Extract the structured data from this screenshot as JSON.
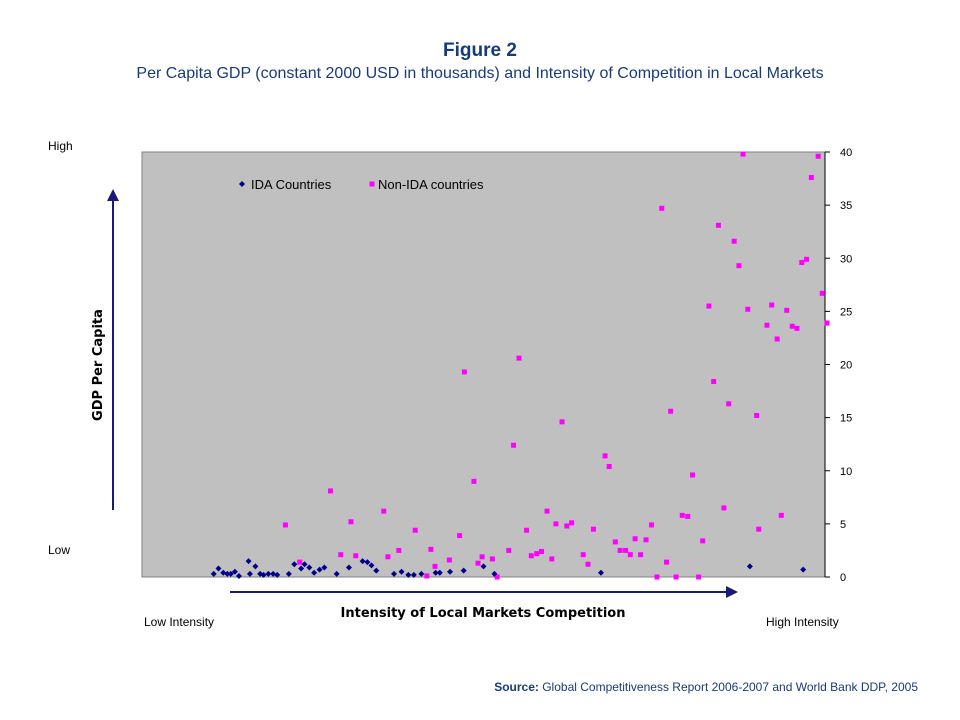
{
  "figure": {
    "title": "Figure 2",
    "subtitle": "Per Capita GDP (constant 2000 USD in thousands) and Intensity of Competition in Local Markets"
  },
  "labels": {
    "high": "High",
    "low": "Low",
    "low_intensity": "Low Intensity",
    "high_intensity": "High Intensity"
  },
  "source": {
    "key": "Source:",
    "text": "Global Competitiveness Report 2006-2007  and World Bank DDP, 2005"
  },
  "colors": {
    "plot_background": "#c0c0c0",
    "ida": "#00008b",
    "non_ida": "#ff00ff",
    "arrow": "#1a1a7a"
  },
  "chart_data": {
    "type": "scatter",
    "title": "",
    "xlabel": "Intensity of Local Markets Competition",
    "ylabel": "GDP Per Capita",
    "ylim": [
      0,
      40
    ],
    "yticks": [
      "0",
      "5",
      "10",
      "15",
      "20",
      "25",
      "30",
      "35",
      "40"
    ],
    "xlim": [
      0,
      100
    ],
    "grid": false,
    "legend_position": "top-left",
    "series": [
      {
        "name": "IDA Countries",
        "marker": "diamond",
        "points": [
          [
            10.5,
            0.3
          ],
          [
            11.2,
            0.8
          ],
          [
            11.9,
            0.4
          ],
          [
            12.5,
            0.3
          ],
          [
            13.0,
            0.3
          ],
          [
            13.6,
            0.5
          ],
          [
            14.2,
            0.1
          ],
          [
            15.6,
            1.5
          ],
          [
            15.8,
            0.3
          ],
          [
            16.6,
            1.0
          ],
          [
            17.3,
            0.3
          ],
          [
            17.8,
            0.2
          ],
          [
            18.5,
            0.3
          ],
          [
            19.2,
            0.3
          ],
          [
            19.8,
            0.2
          ],
          [
            21.5,
            0.3
          ],
          [
            22.3,
            1.2
          ],
          [
            23.3,
            0.8
          ],
          [
            23.8,
            1.2
          ],
          [
            24.5,
            0.9
          ],
          [
            25.2,
            0.4
          ],
          [
            26.0,
            0.7
          ],
          [
            26.7,
            0.9
          ],
          [
            28.5,
            0.3
          ],
          [
            30.3,
            0.9
          ],
          [
            32.3,
            1.5
          ],
          [
            33.0,
            1.4
          ],
          [
            33.6,
            1.1
          ],
          [
            34.3,
            0.6
          ],
          [
            36.9,
            0.3
          ],
          [
            38.0,
            0.5
          ],
          [
            39.0,
            0.2
          ],
          [
            39.8,
            0.2
          ],
          [
            40.9,
            0.3
          ],
          [
            43.0,
            0.4
          ],
          [
            43.6,
            0.4
          ],
          [
            45.1,
            0.5
          ],
          [
            47.1,
            0.6
          ],
          [
            50.0,
            1.0
          ],
          [
            51.6,
            0.3
          ],
          [
            67.2,
            0.4
          ],
          [
            89.0,
            1.0
          ],
          [
            96.8,
            0.7
          ]
        ]
      },
      {
        "name": "Non-IDA countries",
        "marker": "square",
        "points": [
          [
            21.0,
            4.9
          ],
          [
            23.1,
            1.4
          ],
          [
            27.6,
            8.1
          ],
          [
            29.1,
            2.1
          ],
          [
            30.6,
            5.2
          ],
          [
            31.3,
            2.0
          ],
          [
            35.4,
            6.2
          ],
          [
            36.0,
            1.9
          ],
          [
            37.6,
            2.5
          ],
          [
            40.0,
            4.4
          ],
          [
            41.7,
            0.1
          ],
          [
            42.3,
            2.6
          ],
          [
            42.9,
            1.0
          ],
          [
            45.0,
            1.6
          ],
          [
            46.5,
            3.9
          ],
          [
            47.2,
            19.3
          ],
          [
            48.6,
            9.0
          ],
          [
            49.2,
            1.3
          ],
          [
            49.8,
            1.9
          ],
          [
            51.3,
            1.7
          ],
          [
            52.0,
            0.0
          ],
          [
            53.7,
            2.5
          ],
          [
            54.4,
            12.4
          ],
          [
            55.2,
            20.6
          ],
          [
            56.3,
            4.4
          ],
          [
            57.0,
            2.0
          ],
          [
            57.8,
            2.2
          ],
          [
            58.5,
            2.4
          ],
          [
            59.3,
            6.2
          ],
          [
            60.0,
            1.7
          ],
          [
            60.6,
            5.0
          ],
          [
            61.5,
            14.6
          ],
          [
            62.2,
            4.8
          ],
          [
            62.9,
            5.1
          ],
          [
            64.6,
            2.1
          ],
          [
            65.3,
            1.2
          ],
          [
            66.1,
            4.5
          ],
          [
            67.8,
            11.4
          ],
          [
            68.4,
            10.4
          ],
          [
            69.3,
            3.3
          ],
          [
            70.0,
            2.5
          ],
          [
            70.8,
            2.5
          ],
          [
            71.5,
            2.1
          ],
          [
            72.2,
            3.6
          ],
          [
            73.0,
            2.1
          ],
          [
            73.8,
            3.5
          ],
          [
            74.6,
            4.9
          ],
          [
            75.4,
            0.0
          ],
          [
            76.1,
            34.7
          ],
          [
            76.8,
            1.4
          ],
          [
            77.4,
            15.6
          ],
          [
            78.2,
            0.0
          ],
          [
            79.1,
            5.8
          ],
          [
            79.9,
            5.7
          ],
          [
            80.6,
            9.6
          ],
          [
            81.5,
            0.0
          ],
          [
            82.1,
            3.4
          ],
          [
            83.0,
            25.5
          ],
          [
            83.7,
            18.4
          ],
          [
            84.4,
            33.1
          ],
          [
            85.2,
            6.5
          ],
          [
            85.9,
            16.3
          ],
          [
            86.7,
            31.6
          ],
          [
            87.4,
            29.3
          ],
          [
            88.0,
            39.8
          ],
          [
            88.7,
            25.2
          ],
          [
            90.0,
            15.2
          ],
          [
            90.3,
            4.5
          ],
          [
            91.5,
            23.7
          ],
          [
            92.2,
            25.6
          ],
          [
            93.0,
            22.4
          ],
          [
            93.6,
            5.8
          ],
          [
            94.4,
            25.1
          ],
          [
            95.2,
            23.6
          ],
          [
            95.9,
            23.4
          ],
          [
            96.6,
            29.6
          ],
          [
            97.3,
            29.9
          ],
          [
            98.0,
            37.6
          ],
          [
            99.0,
            39.6
          ],
          [
            99.6,
            26.7
          ],
          [
            100.3,
            23.9
          ]
        ]
      }
    ]
  }
}
